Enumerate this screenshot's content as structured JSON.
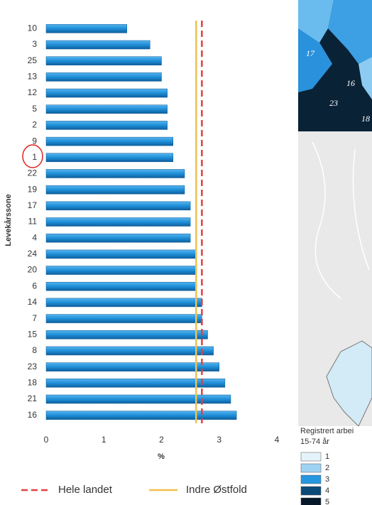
{
  "chart_data": {
    "type": "bar",
    "orientation": "horizontal",
    "ylabel": "Levekårssone",
    "xlabel": "%",
    "categories": [
      "10",
      "3",
      "25",
      "13",
      "12",
      "5",
      "2",
      "9",
      "1",
      "22",
      "19",
      "17",
      "11",
      "4",
      "24",
      "20",
      "6",
      "14",
      "7",
      "15",
      "8",
      "23",
      "18",
      "21",
      "16"
    ],
    "values": [
      1.4,
      1.8,
      2.0,
      2.0,
      2.1,
      2.1,
      2.1,
      2.2,
      2.2,
      2.4,
      2.4,
      2.5,
      2.5,
      2.5,
      2.6,
      2.6,
      2.6,
      2.7,
      2.7,
      2.8,
      2.9,
      3.0,
      3.1,
      3.2,
      3.3
    ],
    "color": "#1e8fd8",
    "xlim": [
      0,
      4
    ],
    "xticks": [
      0,
      1,
      2,
      3,
      4
    ],
    "grid": false,
    "reference_lines": [
      {
        "name": "Hele landet",
        "value": 2.7,
        "color": "#e04040",
        "style": "dashed"
      },
      {
        "name": "Indre Østfold",
        "value": 2.6,
        "color": "#f2c14a",
        "style": "solid"
      }
    ],
    "legend": "bottom"
  },
  "map": {
    "labels": [
      "17",
      "16",
      "23",
      "18"
    ],
    "legend_title": [
      "Registrert arbei",
      "15-74 år"
    ],
    "legend_items": [
      "1",
      "2",
      "3",
      "4",
      "5"
    ],
    "legend_colors": [
      "#e4f3fb",
      "#9fd3f3",
      "#2796e0",
      "#0d4a78",
      "#06182a"
    ]
  }
}
